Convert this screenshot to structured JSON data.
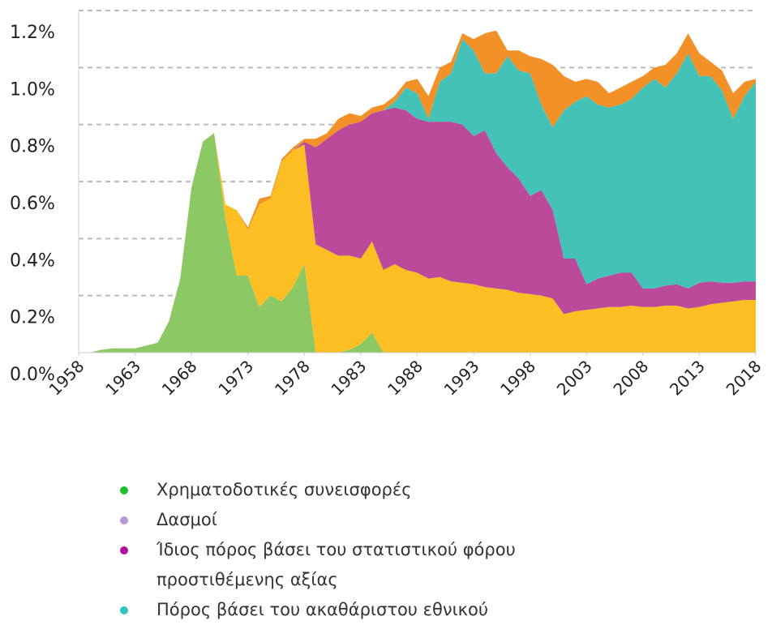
{
  "chart_data": {
    "type": "stacked_area",
    "x": [
      1958,
      1959,
      1960,
      1961,
      1962,
      1963,
      1964,
      1965,
      1966,
      1967,
      1968,
      1969,
      1970,
      1971,
      1972,
      1973,
      1974,
      1975,
      1976,
      1977,
      1978,
      1979,
      1980,
      1981,
      1982,
      1983,
      1984,
      1985,
      1986,
      1987,
      1988,
      1989,
      1990,
      1991,
      1992,
      1993,
      1994,
      1995,
      1996,
      1997,
      1998,
      1999,
      2000,
      2001,
      2002,
      2003,
      2004,
      2005,
      2006,
      2007,
      2008,
      2009,
      2010,
      2011,
      2012,
      2013,
      2014,
      2015,
      2016,
      2017,
      2018
    ],
    "series": [
      {
        "name": "Χρηματοδοτικές συνεισφορές",
        "color": "#8cc864",
        "legend_color": "#1fbf2e",
        "values": [
          0,
          0,
          0.01,
          0.015,
          0.015,
          0.015,
          0.025,
          0.035,
          0.11,
          0.26,
          0.58,
          0.74,
          0.77,
          0.47,
          0.27,
          0.27,
          0.16,
          0.2,
          0.18,
          0.23,
          0.31,
          0,
          0,
          0,
          0.01,
          0.03,
          0.07,
          0,
          0,
          0,
          0,
          0,
          0,
          0,
          0,
          0,
          0,
          0,
          0,
          0,
          0,
          0,
          0,
          0,
          0,
          0,
          0,
          0,
          0,
          0,
          0,
          0,
          0,
          0,
          0,
          0,
          0,
          0,
          0,
          0,
          0
        ]
      },
      {
        "name": "Δασμοί",
        "color": "#fbbf24",
        "legend_color": "#b49ad6",
        "values": [
          0,
          0,
          0,
          0,
          0,
          0,
          0,
          0,
          0,
          0,
          0,
          0,
          0,
          0.05,
          0.23,
          0.16,
          0.36,
          0.34,
          0.49,
          0.48,
          0.42,
          0.38,
          0.36,
          0.34,
          0.33,
          0.3,
          0.32,
          0.29,
          0.31,
          0.29,
          0.28,
          0.26,
          0.265,
          0.25,
          0.245,
          0.24,
          0.23,
          0.225,
          0.22,
          0.21,
          0.205,
          0.2,
          0.19,
          0.135,
          0.145,
          0.15,
          0.155,
          0.16,
          0.16,
          0.165,
          0.16,
          0.16,
          0.165,
          0.165,
          0.155,
          0.16,
          0.17,
          0.175,
          0.18,
          0.185,
          0.185
        ]
      },
      {
        "name": "Ίδιος πόρος βάσει του στατιστικού φόρου προστιθέμενης αξίας",
        "color": "#bb4a9a",
        "legend_color": "#b4109e",
        "values": [
          0,
          0,
          0,
          0,
          0,
          0,
          0,
          0,
          0,
          0,
          0,
          0,
          0,
          0,
          0,
          0,
          0,
          0,
          0,
          0,
          0.01,
          0.34,
          0.39,
          0.44,
          0.46,
          0.48,
          0.45,
          0.56,
          0.55,
          0.56,
          0.54,
          0.55,
          0.545,
          0.56,
          0.555,
          0.52,
          0.55,
          0.475,
          0.43,
          0.4,
          0.345,
          0.37,
          0.31,
          0.195,
          0.185,
          0.09,
          0.105,
          0.11,
          0.12,
          0.115,
          0.065,
          0.065,
          0.07,
          0.075,
          0.07,
          0.085,
          0.08,
          0.07,
          0.065,
          0.065,
          0.065
        ]
      },
      {
        "name": "Πόρος βάσει του ακαθάριστου εθνικού",
        "color": "#45c2b8",
        "legend_color": "#30c4c0",
        "values": [
          0,
          0,
          0,
          0,
          0,
          0,
          0,
          0,
          0,
          0,
          0,
          0,
          0,
          0,
          0,
          0,
          0,
          0,
          0,
          0,
          0,
          0,
          0,
          0,
          0,
          0,
          0,
          0,
          0.02,
          0.08,
          0.09,
          0.01,
          0.14,
          0.17,
          0.3,
          0.3,
          0.2,
          0.28,
          0.39,
          0.38,
          0.43,
          0.3,
          0.29,
          0.52,
          0.55,
          0.66,
          0.61,
          0.59,
          0.59,
          0.61,
          0.705,
          0.735,
          0.695,
          0.74,
          0.825,
          0.725,
          0.72,
          0.675,
          0.575,
          0.65,
          0.7
        ]
      },
      {
        "color": "#f39129",
        "values": [
          0,
          0,
          0,
          0,
          0,
          0,
          0,
          0,
          0,
          0,
          0,
          0,
          0,
          0,
          0,
          0.01,
          0.02,
          0.01,
          0.01,
          0.01,
          0.01,
          0.03,
          0.02,
          0.04,
          0.04,
          0.02,
          0.02,
          0.02,
          0.02,
          0.02,
          0.05,
          0.08,
          0.05,
          0.04,
          0.02,
          0.04,
          0.14,
          0.15,
          0.02,
          0.07,
          0.06,
          0.16,
          0.22,
          0.12,
          0.07,
          0.06,
          0.08,
          0.05,
          0.06,
          0.06,
          0.04,
          0.04,
          0.08,
          0.07,
          0.07,
          0.08,
          0.05,
          0.07,
          0.09,
          0.05,
          0.01
        ]
      }
    ],
    "xlim": [
      1958,
      2018
    ],
    "xticks": [
      1958,
      1963,
      1968,
      1973,
      1978,
      1983,
      1988,
      1993,
      1998,
      2003,
      2008,
      2013,
      2018
    ],
    "ylim": [
      0,
      1.2
    ],
    "yticks": [
      {
        "value": 0,
        "label": "0.0%"
      },
      {
        "value": 0.2,
        "label": "0.2%"
      },
      {
        "value": 0.4,
        "label": "0.4%"
      },
      {
        "value": 0.6,
        "label": "0.6%"
      },
      {
        "value": 0.8,
        "label": "0.8%"
      },
      {
        "value": 1.0,
        "label": "1.0%"
      },
      {
        "value": 1.2,
        "label": "1.2%"
      }
    ],
    "grid": true
  }
}
